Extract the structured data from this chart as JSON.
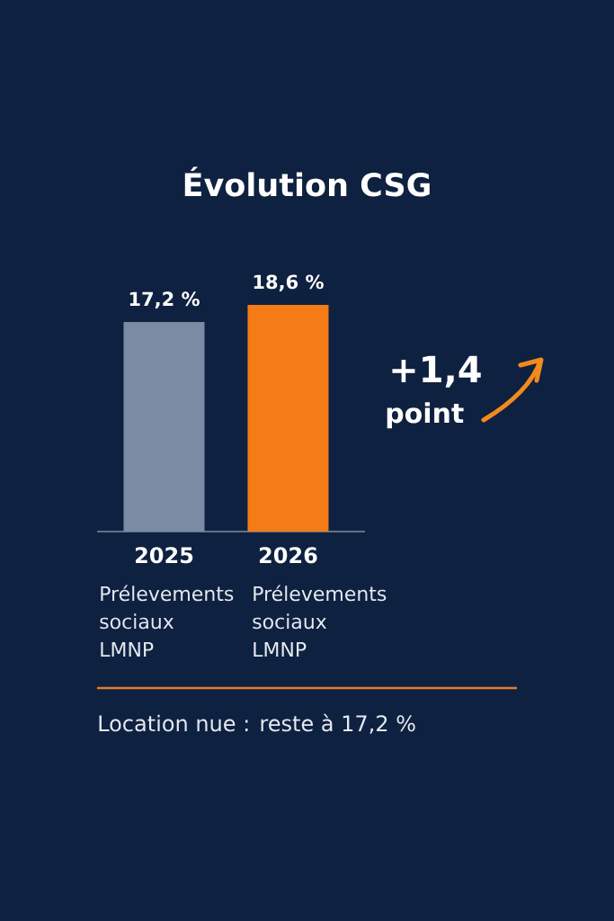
{
  "chart_data": {
    "type": "bar",
    "title": "Évolution CSG",
    "categories": [
      "2025",
      "2026"
    ],
    "values": [
      17.2,
      18.6
    ],
    "colors": [
      "#7b8ba4",
      "#f47b16"
    ],
    "value_labels": [
      "17,2 %",
      "18,6 %"
    ],
    "tick_labels": "x",
    "annotations": [
      "Prélevements sociaux LMNP",
      "Prélevements sociaux LMNP",
      "+1,4",
      "point",
      "Location nue : reste à 17,2 %"
    ]
  }
}
